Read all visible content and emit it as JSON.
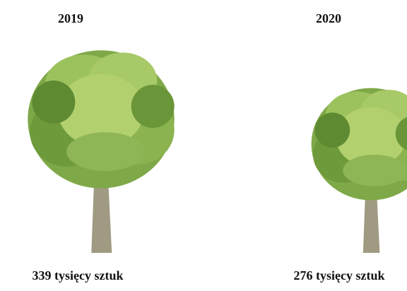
{
  "chart_data": {
    "type": "pictograph",
    "categories": [
      "2019",
      "2020"
    ],
    "values": [
      339,
      276
    ],
    "value_labels": [
      "339 tysięcy sztuk",
      "276 tysięcy sztuk"
    ]
  }
}
